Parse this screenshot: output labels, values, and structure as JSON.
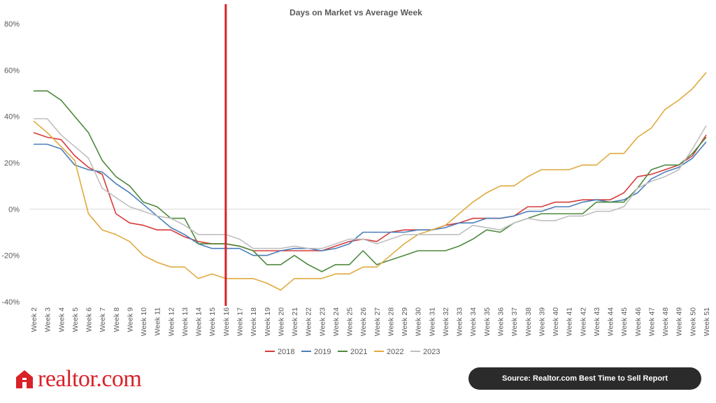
{
  "chart_data": {
    "type": "line",
    "title": "Days on Market vs Average Week",
    "xlabel": "",
    "ylabel": "",
    "ylim": [
      -40,
      80
    ],
    "yticks": [
      "80%",
      "60%",
      "40%",
      "20%",
      "0%",
      "-20%",
      "-40%"
    ],
    "grid": "zero-line only",
    "legend_position": "bottom",
    "marker_line": {
      "category": "Week 16",
      "color": "#d92228"
    },
    "categories": [
      "Week 2",
      "Week 3",
      "Week 4",
      "Week 5",
      "Week 6",
      "Week 7",
      "Week 8",
      "Week 9",
      "Week 10",
      "Week 11",
      "Week 12",
      "Week 13",
      "Week 14",
      "Week 15",
      "Week 16",
      "Week 17",
      "Week 18",
      "Week 19",
      "Week 20",
      "Week 21",
      "Week 22",
      "Week 23",
      "Week 24",
      "Week 25",
      "Week 26",
      "Week 27",
      "Week 28",
      "Week 29",
      "Week 30",
      "Week 31",
      "Week 32",
      "Week 33",
      "Week 34",
      "Week 35",
      "Week 36",
      "Week 37",
      "Week 38",
      "Week 39",
      "Week 40",
      "Week 41",
      "Week 42",
      "Week 43",
      "Week 44",
      "Week 45",
      "Week 46",
      "Week 47",
      "Week 48",
      "Week 49",
      "Week 50",
      "Week 51"
    ],
    "series": [
      {
        "name": "2018",
        "color": "#d63b3b",
        "values": [
          33,
          31,
          30,
          23,
          18,
          15,
          -2,
          -6,
          -7,
          -9,
          -9,
          -12,
          -14,
          -15,
          -15,
          -16,
          -18,
          -18,
          -18,
          -18,
          -18,
          -18,
          -16,
          -14,
          -13,
          -14,
          -10,
          -9,
          -9,
          -9,
          -7,
          -6,
          -4,
          -4,
          -4,
          -3,
          1,
          1,
          3,
          3,
          4,
          4,
          4,
          7,
          14,
          15,
          17,
          19,
          23,
          32
        ]
      },
      {
        "name": "2019",
        "color": "#4a7ebb",
        "values": [
          28,
          28,
          26,
          19,
          17,
          16,
          11,
          7,
          2,
          -3,
          -8,
          -11,
          -15,
          -17,
          -17,
          -17,
          -20,
          -20,
          -18,
          -17,
          -17,
          -18,
          -17,
          -15,
          -10,
          -10,
          -10,
          -10,
          -9,
          -9,
          -8,
          -6,
          -6,
          -4,
          -4,
          -3,
          -1,
          -1,
          1,
          1,
          3,
          4,
          3,
          4,
          7,
          13,
          16,
          18,
          22,
          29
        ]
      },
      {
        "name": "2021",
        "color": "#4e8a3e",
        "values": [
          51,
          51,
          47,
          40,
          33,
          21,
          14,
          10,
          3,
          1,
          -4,
          -4,
          -15,
          -15,
          -15,
          -16,
          -18,
          -24,
          -24,
          -20,
          -24,
          -27,
          -24,
          -24,
          -18,
          -24,
          -22,
          -20,
          -18,
          -18,
          -18,
          -16,
          -13,
          -9,
          -10,
          -6,
          -4,
          -2,
          -2,
          -2,
          -2,
          3,
          3,
          3,
          9,
          17,
          19,
          19,
          24,
          31
        ]
      },
      {
        "name": "2022",
        "color": "#e0aa3e",
        "values": [
          38,
          33,
          27,
          21,
          -2,
          -9,
          -11,
          -14,
          -20,
          -23,
          -25,
          -25,
          -30,
          -28,
          -30,
          -30,
          -30,
          -32,
          -35,
          -30,
          -30,
          -30,
          -28,
          -28,
          -25,
          -25,
          -20,
          -15,
          -11,
          -9,
          -7,
          -2,
          3,
          7,
          10,
          10,
          14,
          17,
          17,
          17,
          19,
          19,
          24,
          24,
          31,
          35,
          43,
          47,
          52,
          59
        ]
      },
      {
        "name": "2023",
        "color": "#bfbfbf",
        "values": [
          39,
          39,
          32,
          27,
          22,
          9,
          5,
          1,
          -1,
          -3,
          -4,
          -7,
          -11,
          -11,
          -11,
          -13,
          -17,
          -17,
          -17,
          -16,
          -17,
          -17,
          -15,
          -13,
          -13,
          -15,
          -13,
          -11,
          -11,
          -11,
          -11,
          -11,
          -7,
          -8,
          -9,
          -6,
          -4,
          -5,
          -5,
          -3,
          -3,
          -1,
          -1,
          1,
          9,
          12,
          14,
          17,
          26,
          36
        ]
      }
    ]
  },
  "footer": {
    "brand": "realtor.com",
    "brand_color": "#d92228",
    "source": "Source: Realtor.com Best Time to Sell Report"
  }
}
